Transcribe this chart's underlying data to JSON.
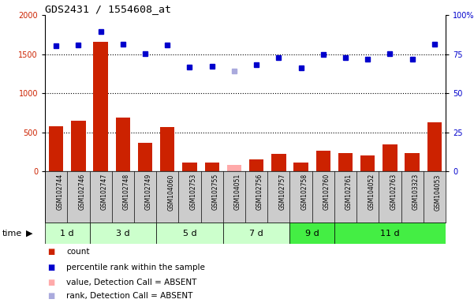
{
  "title": "GDS2431 / 1554608_at",
  "samples": [
    "GSM102744",
    "GSM102746",
    "GSM102747",
    "GSM102748",
    "GSM102749",
    "GSM104060",
    "GSM102753",
    "GSM102755",
    "GSM104051",
    "GSM102756",
    "GSM102757",
    "GSM102758",
    "GSM102760",
    "GSM102761",
    "GSM104052",
    "GSM102763",
    "GSM103323",
    "GSM104053"
  ],
  "count_values": [
    580,
    650,
    1660,
    690,
    360,
    570,
    110,
    110,
    80,
    150,
    220,
    115,
    260,
    230,
    205,
    340,
    235,
    630
  ],
  "count_absent": [
    false,
    false,
    false,
    false,
    false,
    false,
    false,
    false,
    true,
    false,
    false,
    false,
    false,
    false,
    false,
    false,
    false,
    false
  ],
  "percentile_values": [
    80.5,
    80.75,
    89.25,
    81.25,
    75.25,
    80.75,
    66.5,
    67.25,
    64.25,
    68.0,
    73.0,
    66.25,
    75.0,
    72.75,
    71.75,
    75.5,
    71.75,
    81.25
  ],
  "percentile_absent": [
    false,
    false,
    false,
    false,
    false,
    false,
    false,
    false,
    true,
    false,
    false,
    false,
    false,
    false,
    false,
    false,
    false,
    false
  ],
  "group_boundaries": [
    {
      "label": "1 d",
      "start": 0,
      "end": 1,
      "color": "#bbffbb"
    },
    {
      "label": "3 d",
      "start": 2,
      "end": 4,
      "color": "#bbffbb"
    },
    {
      "label": "5 d",
      "start": 5,
      "end": 7,
      "color": "#bbffbb"
    },
    {
      "label": "7 d",
      "start": 8,
      "end": 10,
      "color": "#bbffbb"
    },
    {
      "label": "9 d",
      "start": 11,
      "end": 12,
      "color": "#44ee44"
    },
    {
      "label": "11 d",
      "start": 13,
      "end": 17,
      "color": "#44ee44"
    }
  ],
  "bar_color_present": "#cc2200",
  "bar_color_absent": "#ffaaaa",
  "dot_color_present": "#0000cc",
  "dot_color_absent": "#aaaadd",
  "ylim_left": [
    0,
    2000
  ],
  "ylim_right": [
    0,
    100
  ],
  "yticks_left": [
    0,
    500,
    1000,
    1500,
    2000
  ],
  "ytick_labels_right": [
    "0",
    "25",
    "50",
    "75",
    "100%"
  ],
  "light_green": "#ccffcc",
  "bright_green": "#44ee44",
  "gray_bg": "#cccccc"
}
